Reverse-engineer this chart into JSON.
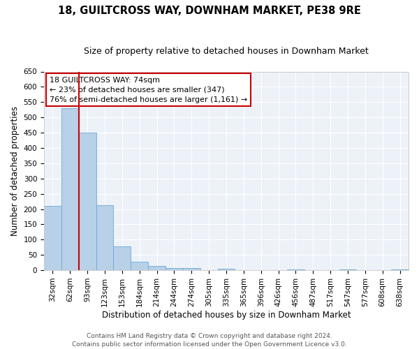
{
  "title": "18, GUILTCROSS WAY, DOWNHAM MARKET, PE38 9RE",
  "subtitle": "Size of property relative to detached houses in Downham Market",
  "xlabel": "Distribution of detached houses by size in Downham Market",
  "ylabel": "Number of detached properties",
  "bar_labels": [
    "32sqm",
    "62sqm",
    "93sqm",
    "123sqm",
    "153sqm",
    "184sqm",
    "214sqm",
    "244sqm",
    "274sqm",
    "305sqm",
    "335sqm",
    "365sqm",
    "396sqm",
    "426sqm",
    "456sqm",
    "487sqm",
    "517sqm",
    "547sqm",
    "577sqm",
    "608sqm",
    "638sqm"
  ],
  "bar_values": [
    210,
    530,
    450,
    212,
    77,
    27,
    14,
    8,
    6,
    0,
    5,
    0,
    0,
    0,
    2,
    0,
    0,
    2,
    0,
    0,
    2
  ],
  "bar_color": "#b8d0e8",
  "bar_edgecolor": "#6aaad4",
  "vline_x_idx": 1,
  "vline_color": "#cc0000",
  "ylim": [
    0,
    650
  ],
  "yticks": [
    0,
    50,
    100,
    150,
    200,
    250,
    300,
    350,
    400,
    450,
    500,
    550,
    600,
    650
  ],
  "annotation_title": "18 GUILTCROSS WAY: 74sqm",
  "annotation_line1": "← 23% of detached houses are smaller (347)",
  "annotation_line2": "76% of semi-detached houses are larger (1,161) →",
  "annotation_box_facecolor": "#ffffff",
  "annotation_box_edgecolor": "#cc0000",
  "footer_line1": "Contains HM Land Registry data © Crown copyright and database right 2024.",
  "footer_line2": "Contains public sector information licensed under the Open Government Licence v3.0.",
  "plot_bg_color": "#edf2f9",
  "grid_color": "#ffffff",
  "fig_bg_color": "#ffffff",
  "title_fontsize": 10.5,
  "subtitle_fontsize": 9,
  "axis_label_fontsize": 8.5,
  "tick_fontsize": 7.5,
  "annotation_fontsize": 8,
  "footer_fontsize": 6.5
}
